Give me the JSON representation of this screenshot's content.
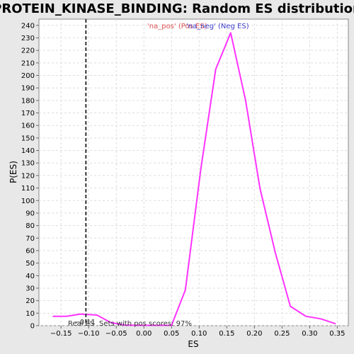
{
  "chart_data": {
    "type": "line",
    "title": "PROTEIN_KINASE_BINDING: Random ES distribution",
    "xlabel": "ES",
    "ylabel": "P(ES)",
    "xlim": [
      -0.19,
      0.37
    ],
    "ylim": [
      0,
      245
    ],
    "x_ticks": [
      -0.15,
      -0.1,
      -0.05,
      0.0,
      0.05,
      0.1,
      0.15,
      0.2,
      0.25,
      0.3,
      0.35
    ],
    "x_tick_labels": [
      "−0.15",
      "−0.10",
      "−0.05",
      "0.00",
      "0.05",
      "0.10",
      "0.15",
      "0.20",
      "0.25",
      "0.30",
      "0.35"
    ],
    "y_ticks": [
      0,
      10,
      20,
      30,
      40,
      50,
      60,
      70,
      80,
      90,
      100,
      110,
      120,
      130,
      140,
      150,
      160,
      170,
      180,
      190,
      200,
      210,
      220,
      230,
      240
    ],
    "grid": true,
    "legend": [
      {
        "label": "'na_pos' (Pos ES)",
        "color": "#e05050"
      },
      {
        "label": "'na_neg' (Neg ES)",
        "color": "#4040d0"
      }
    ],
    "series": [
      {
        "color": "#ff33ff",
        "x": [
          -0.165,
          -0.14,
          -0.115,
          -0.085,
          -0.06,
          -0.035,
          -0.01,
          0.02,
          0.05,
          0.075,
          0.103,
          0.13,
          0.157,
          0.184,
          0.21,
          0.238,
          0.265,
          0.293,
          0.32,
          0.347
        ],
        "y": [
          7.5,
          7.5,
          9.3,
          8.5,
          2.5,
          0.5,
          0.3,
          0.3,
          0.3,
          28.5,
          125,
          205,
          234,
          180,
          110,
          58,
          15.5,
          7.5,
          5.5,
          1.5
        ]
      }
    ],
    "real_es": {
      "value": -0.105,
      "label": "Real ES",
      "note": "−0.11"
    },
    "annotation": "Sets with pos scores: 97%"
  }
}
